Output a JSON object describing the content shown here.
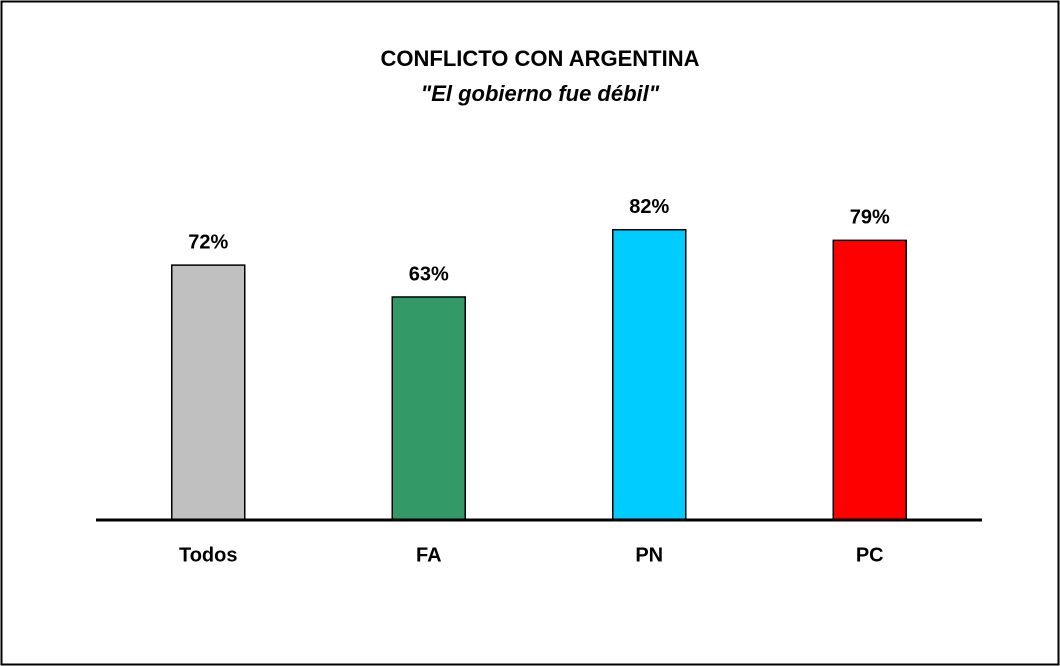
{
  "chart_data": {
    "type": "bar",
    "title": "CONFLICTO CON ARGENTINA",
    "subtitle": "\"El gobierno fue débil\"",
    "categories": [
      "Todos",
      "FA",
      "PN",
      "PC"
    ],
    "values": [
      72,
      63,
      82,
      79
    ],
    "value_labels": [
      "72%",
      "63%",
      "82%",
      "79%"
    ],
    "colors": [
      "#c0c0c0",
      "#339966",
      "#00ccff",
      "#ff0000"
    ]
  }
}
